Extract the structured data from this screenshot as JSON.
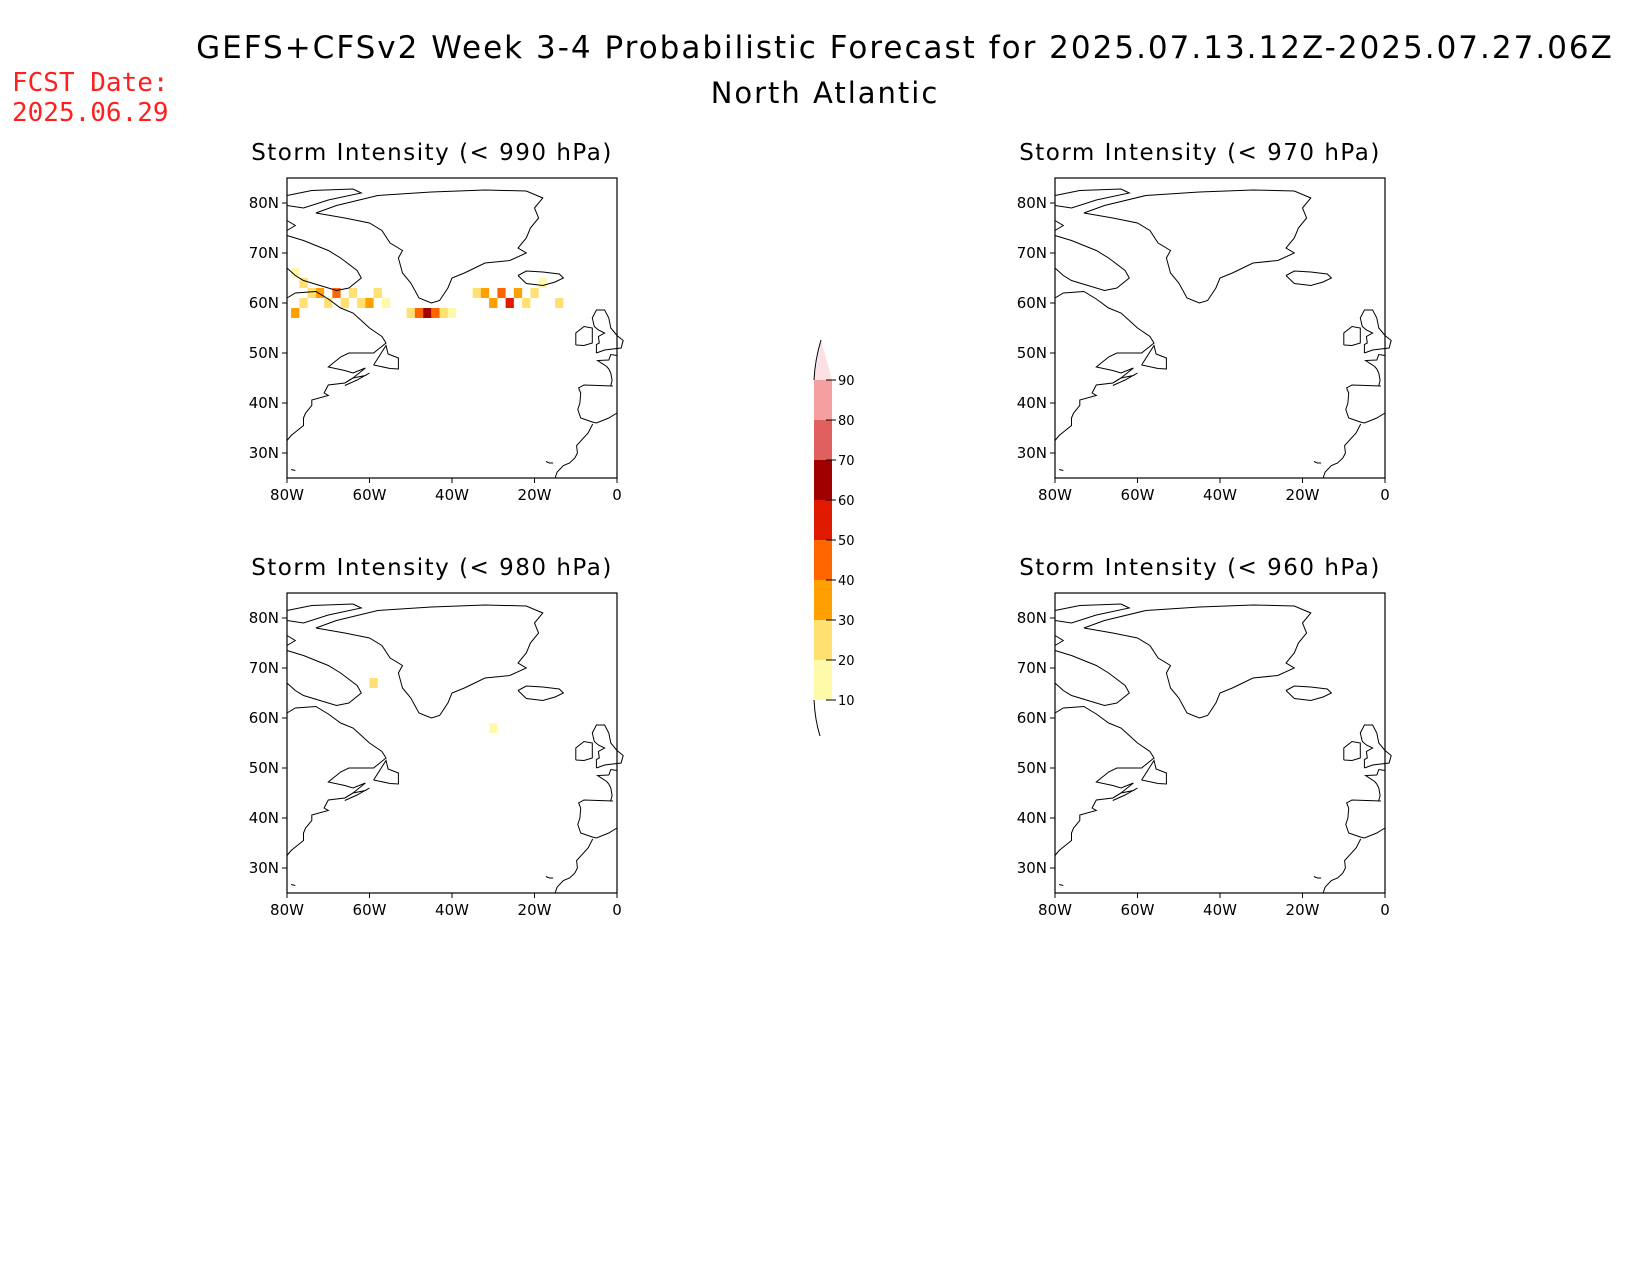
{
  "header": {
    "title": "GEFS+CFSv2 Week 3-4 Probabilistic Forecast for 2025.07.13.12Z-2025.07.27.06Z",
    "region": "North Atlantic",
    "fcst_label": "FCST Date:",
    "fcst_date": "2025.06.29"
  },
  "axes": {
    "lon_ticks": [
      "80W",
      "60W",
      "40W",
      "20W",
      "0"
    ],
    "lat_ticks": [
      "80N",
      "70N",
      "60N",
      "50N",
      "40N",
      "30N"
    ]
  },
  "panels": [
    {
      "title": "Storm Intensity (< 990 hPa)",
      "threshold_hPa": 990
    },
    {
      "title": "Storm Intensity (< 970 hPa)",
      "threshold_hPa": 970
    },
    {
      "title": "Storm Intensity (< 980 hPa)",
      "threshold_hPa": 980
    },
    {
      "title": "Storm Intensity (< 960 hPa)",
      "threshold_hPa": 960
    }
  ],
  "colorbar": {
    "labels": [
      "90",
      "80",
      "70",
      "60",
      "50",
      "40",
      "30",
      "20",
      "10"
    ],
    "colors": [
      "#fde0e4",
      "#f4a0a0",
      "#e06060",
      "#a00000",
      "#e01a00",
      "#ff6600",
      "#ff9f00",
      "#ffe070",
      "#fffaaa"
    ]
  },
  "chart_data": [
    {
      "type": "heatmap",
      "title": "Storm Intensity (< 990 hPa)",
      "xlim_lon": [
        -80,
        0
      ],
      "ylim_lat": [
        25,
        85
      ],
      "cells": [
        {
          "lon": -78,
          "lat": 66,
          "prob": 10
        },
        {
          "lon": -76,
          "lat": 64,
          "prob": 20
        },
        {
          "lon": -74,
          "lat": 62,
          "prob": 20
        },
        {
          "lon": -72,
          "lat": 62,
          "prob": 30
        },
        {
          "lon": -70,
          "lat": 60,
          "prob": 20
        },
        {
          "lon": -68,
          "lat": 62,
          "prob": 40
        },
        {
          "lon": -66,
          "lat": 60,
          "prob": 20
        },
        {
          "lon": -64,
          "lat": 62,
          "prob": 20
        },
        {
          "lon": -62,
          "lat": 60,
          "prob": 20
        },
        {
          "lon": -60,
          "lat": 60,
          "prob": 30
        },
        {
          "lon": -58,
          "lat": 62,
          "prob": 20
        },
        {
          "lon": -56,
          "lat": 60,
          "prob": 10
        },
        {
          "lon": -78,
          "lat": 58,
          "prob": 30
        },
        {
          "lon": -76,
          "lat": 60,
          "prob": 20
        },
        {
          "lon": -50,
          "lat": 58,
          "prob": 20
        },
        {
          "lon": -48,
          "lat": 58,
          "prob": 40
        },
        {
          "lon": -46,
          "lat": 58,
          "prob": 60
        },
        {
          "lon": -44,
          "lat": 58,
          "prob": 40
        },
        {
          "lon": -42,
          "lat": 58,
          "prob": 20
        },
        {
          "lon": -40,
          "lat": 58,
          "prob": 10
        },
        {
          "lon": -34,
          "lat": 62,
          "prob": 20
        },
        {
          "lon": -32,
          "lat": 62,
          "prob": 30
        },
        {
          "lon": -30,
          "lat": 60,
          "prob": 30
        },
        {
          "lon": -28,
          "lat": 62,
          "prob": 40
        },
        {
          "lon": -26,
          "lat": 60,
          "prob": 50
        },
        {
          "lon": -24,
          "lat": 62,
          "prob": 30
        },
        {
          "lon": -22,
          "lat": 60,
          "prob": 20
        },
        {
          "lon": -20,
          "lat": 62,
          "prob": 20
        },
        {
          "lon": -18,
          "lat": 64,
          "prob": 10
        },
        {
          "lon": -14,
          "lat": 60,
          "prob": 20
        }
      ]
    },
    {
      "type": "heatmap",
      "title": "Storm Intensity (< 970 hPa)",
      "xlim_lon": [
        -80,
        0
      ],
      "ylim_lat": [
        25,
        85
      ],
      "cells": []
    },
    {
      "type": "heatmap",
      "title": "Storm Intensity (< 980 hPa)",
      "xlim_lon": [
        -80,
        0
      ],
      "ylim_lat": [
        25,
        85
      ],
      "cells": [
        {
          "lon": -59,
          "lat": 67,
          "prob": 20
        },
        {
          "lon": -30,
          "lat": 58,
          "prob": 10
        }
      ]
    },
    {
      "type": "heatmap",
      "title": "Storm Intensity (< 960 hPa)",
      "xlim_lon": [
        -80,
        0
      ],
      "ylim_lat": [
        25,
        85
      ],
      "cells": []
    }
  ]
}
